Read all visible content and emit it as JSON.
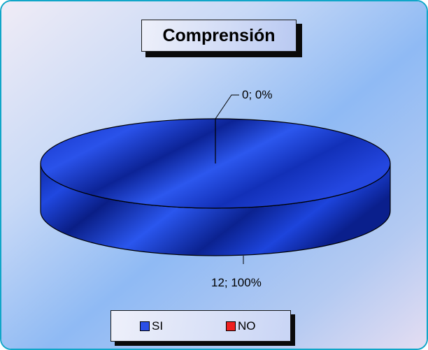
{
  "chart_data": {
    "type": "pie",
    "title": "Comprensión",
    "categories": [
      "SI",
      "NO"
    ],
    "values": [
      12,
      0
    ],
    "percentages": [
      "100%",
      "0%"
    ],
    "data_labels": [
      "12; 100%",
      "0; 0%"
    ],
    "legend_position": "bottom",
    "style": "3d-cylinder"
  },
  "colors": {
    "frame_border": "#10a6c8",
    "pie_main": "#1a3fd6",
    "pie_dark": "#0a1f8c",
    "legend_si": "#2b4fe6",
    "legend_no": "#ee2020"
  }
}
